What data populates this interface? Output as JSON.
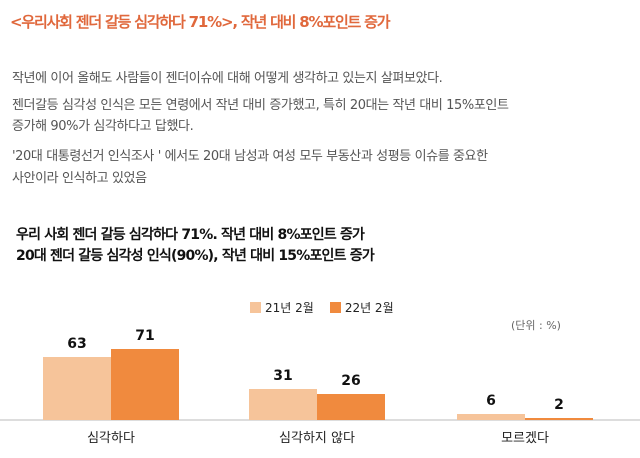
{
  "headline": "<우리사회 젠더 갈등 심각하다 71%>, 작년 대비 8%포인트 증가",
  "body": {
    "line1": "작년에 이어 올해도 사람들이 젠더이슈에 대해 어떻게 생각하고 있는지 살펴보았다.",
    "line2": "젠더갈등 심각성 인식은 모든 연령에서 작년 대비 증가했고, 특히  20대는 작년 대비 15%포인트",
    "line3": "증가해 90%가 심각하다고 답했다.",
    "line4": "'20대 대통령선거 인식조사 ' 에서도 20대 남성과 여성 모두 부동산과 성평등 이슈를 중요한",
    "line5": "사안이라 인식하고 있었음"
  },
  "chart_data": {
    "type": "bar",
    "title": "우리 사회 젠더 갈등 심각하다 71%.  작년 대비 8%포인트 증가",
    "subtitle": "20대 젠더 갈등 심각성 인식(90%), 작년 대비 15%포인트 증가",
    "unit_label": "(단위 : %)",
    "categories": [
      "심각하다",
      "심각하지 않다",
      "모르겠다"
    ],
    "series": [
      {
        "name": "21년 2월",
        "values": [
          63,
          31,
          6
        ],
        "color": "#f6c49a"
      },
      {
        "name": "22년 2월",
        "values": [
          71,
          26,
          2
        ],
        "color": "#f08a3e"
      }
    ],
    "ylim": [
      0,
      80
    ],
    "grid": false,
    "legend_position": "top-center"
  }
}
